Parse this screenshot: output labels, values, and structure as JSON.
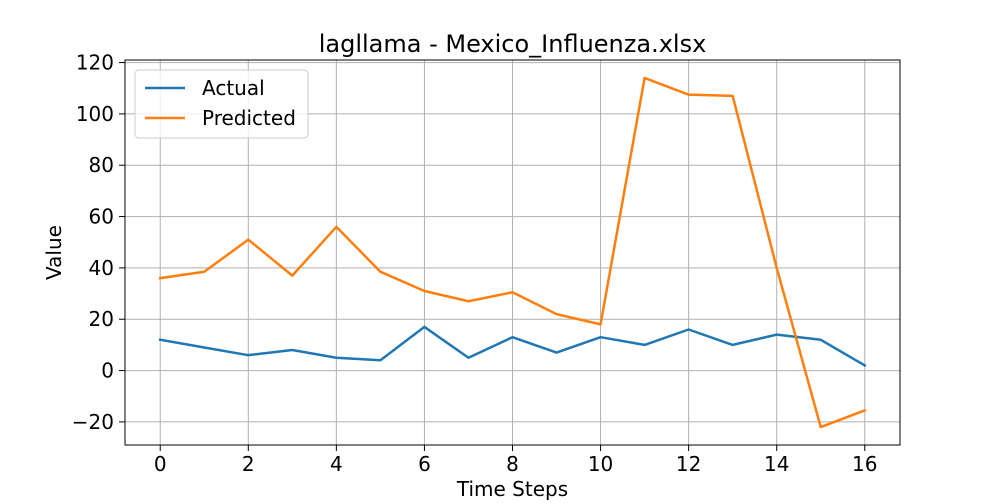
{
  "chart_data": {
    "type": "line",
    "title": "lagllama - Mexico_Influenza.xlsx",
    "xlabel": "Time Steps",
    "ylabel": "Value",
    "x": [
      0,
      1,
      2,
      3,
      4,
      5,
      6,
      7,
      8,
      9,
      10,
      11,
      12,
      13,
      14,
      15,
      16
    ],
    "xlim": [
      -0.8,
      16.8
    ],
    "ylim": [
      -29,
      121
    ],
    "xticks": [
      0,
      2,
      4,
      6,
      8,
      10,
      12,
      14,
      16
    ],
    "yticks": [
      -20,
      0,
      20,
      40,
      60,
      80,
      100,
      120
    ],
    "xtick_labels": [
      "0",
      "2",
      "4",
      "6",
      "8",
      "10",
      "12",
      "14",
      "16"
    ],
    "ytick_labels": [
      "−20",
      "0",
      "20",
      "40",
      "60",
      "80",
      "100",
      "120"
    ],
    "grid": true,
    "legend_position": "upper-left",
    "series": [
      {
        "name": "Actual",
        "color": "#1f77b4",
        "values": [
          12,
          9,
          6,
          8,
          5,
          4,
          17,
          5,
          13,
          7,
          13,
          10,
          16,
          10,
          14,
          12,
          2
        ]
      },
      {
        "name": "Predicted",
        "color": "#ff7f0e",
        "values": [
          36,
          38.5,
          51,
          37,
          56,
          38.5,
          31,
          27,
          30.5,
          22,
          18,
          114,
          107.5,
          107,
          40,
          -22,
          -15.5
        ]
      }
    ]
  }
}
